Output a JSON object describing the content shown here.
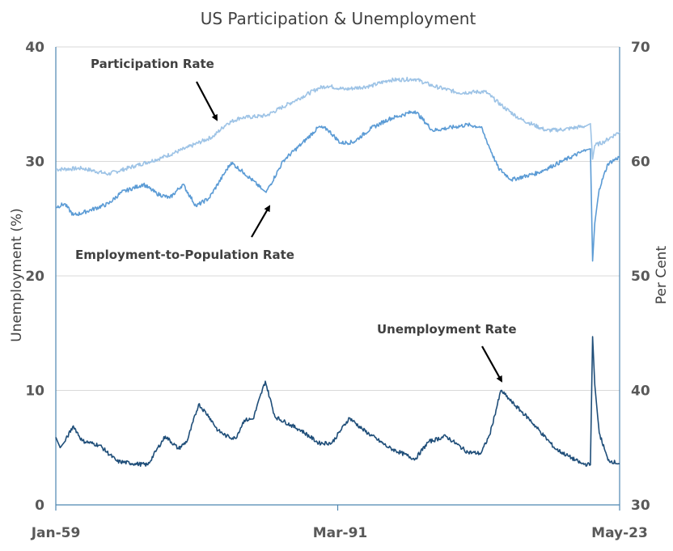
{
  "chart_data": {
    "type": "line",
    "title": "US Participation & Unemployment",
    "ylabel_left": "Unemployment  (%)",
    "ylabel_right": "Per Cent",
    "xlabel": "",
    "ylim_left": [
      0,
      40
    ],
    "ylim_right": [
      30,
      70
    ],
    "yticks_left": [
      "0",
      "10",
      "20",
      "30",
      "40"
    ],
    "yticks_right": [
      "30",
      "40",
      "50",
      "60",
      "70"
    ],
    "xticks": [
      "Jan-59",
      "Mar-91",
      "May-23"
    ],
    "xlim": [
      1959.0,
      2023.33
    ],
    "grid": true,
    "legend": "none",
    "annotations": [
      {
        "text": "Participation Rate",
        "series": "Participation Rate"
      },
      {
        "text": "Employment-to-Population Rate",
        "series": "Employment-to-Population Rate"
      },
      {
        "text": "Unemployment Rate",
        "series": "Unemployment Rate"
      }
    ],
    "series": [
      {
        "name": "Participation Rate",
        "axis": "right",
        "color": "#9dc3e6",
        "x": [
          1959.0,
          1962.0,
          1965.0,
          1968.0,
          1971.0,
          1974.0,
          1977.0,
          1978.5,
          1980.0,
          1983.0,
          1986.0,
          1989.0,
          1990.0,
          1992.0,
          1995.0,
          1997.0,
          2000.0,
          2002.0,
          2005.0,
          2008.0,
          2010.0,
          2012.0,
          2015.0,
          2017.0,
          2019.5,
          2020.0,
          2020.25,
          2020.5,
          2021.5,
          2023.33
        ],
        "y": [
          59.3,
          59.4,
          58.9,
          59.6,
          60.3,
          61.2,
          62.2,
          63.3,
          63.8,
          64.0,
          65.2,
          66.4,
          66.6,
          66.3,
          66.6,
          67.1,
          67.2,
          66.6,
          66.0,
          66.1,
          64.8,
          63.7,
          62.7,
          62.8,
          63.1,
          63.3,
          60.2,
          61.4,
          61.7,
          62.6
        ]
      },
      {
        "name": "Employment-to-Population Rate",
        "axis": "right",
        "color": "#5b9bd5",
        "x": [
          1959.0,
          1960.0,
          1961.0,
          1962.0,
          1965.0,
          1966.5,
          1969.0,
          1970.5,
          1972.0,
          1973.5,
          1975.0,
          1976.5,
          1979.0,
          1980.5,
          1982.5,
          1983.0,
          1985.0,
          1987.0,
          1989.0,
          1990.0,
          1991.5,
          1993.0,
          1995.0,
          1997.0,
          2000.0,
          2002.0,
          2006.0,
          2007.5,
          2009.5,
          2011.0,
          2014.0,
          2017.0,
          2019.5,
          2020.0,
          2020.25,
          2020.5,
          2021.0,
          2022.0,
          2023.33
        ],
        "y": [
          56.0,
          56.3,
          55.3,
          55.5,
          56.3,
          57.3,
          58.0,
          57.2,
          56.8,
          58.0,
          56.1,
          56.8,
          59.9,
          59.0,
          57.6,
          57.3,
          60.1,
          61.5,
          63.0,
          62.8,
          61.6,
          61.7,
          62.9,
          63.7,
          64.4,
          62.7,
          63.2,
          63.0,
          59.4,
          58.4,
          59.0,
          60.1,
          61.0,
          61.1,
          51.3,
          54.6,
          57.6,
          59.8,
          60.4
        ]
      },
      {
        "name": "Unemployment Rate",
        "axis": "left",
        "color": "#1f4e79",
        "x": [
          1959.0,
          1959.5,
          1960.0,
          1961.0,
          1962.0,
          1964.0,
          1966.0,
          1968.0,
          1969.5,
          1970.5,
          1971.5,
          1973.0,
          1974.0,
          1975.3,
          1976.5,
          1977.5,
          1978.5,
          1979.5,
          1980.5,
          1981.5,
          1982.9,
          1984.0,
          1987.0,
          1989.0,
          1990.5,
          1992.5,
          1994.0,
          1997.0,
          2000.0,
          2001.5,
          2003.5,
          2006.0,
          2007.5,
          2008.5,
          2009.8,
          2011.0,
          2013.0,
          2016.0,
          2019.0,
          2020.0,
          2020.25,
          2020.5,
          2021.0,
          2022.0,
          2023.33
        ],
        "y": [
          5.9,
          5.0,
          5.5,
          6.9,
          5.6,
          5.2,
          3.8,
          3.6,
          3.5,
          4.8,
          6.0,
          4.9,
          5.6,
          8.8,
          7.7,
          6.5,
          6.0,
          5.8,
          7.4,
          7.5,
          10.8,
          7.7,
          6.5,
          5.4,
          5.4,
          7.6,
          6.6,
          5.0,
          4.0,
          5.5,
          6.0,
          4.6,
          4.5,
          6.1,
          10.0,
          9.0,
          7.5,
          4.9,
          3.6,
          3.5,
          14.7,
          10.5,
          6.3,
          3.9,
          3.6
        ]
      }
    ]
  }
}
